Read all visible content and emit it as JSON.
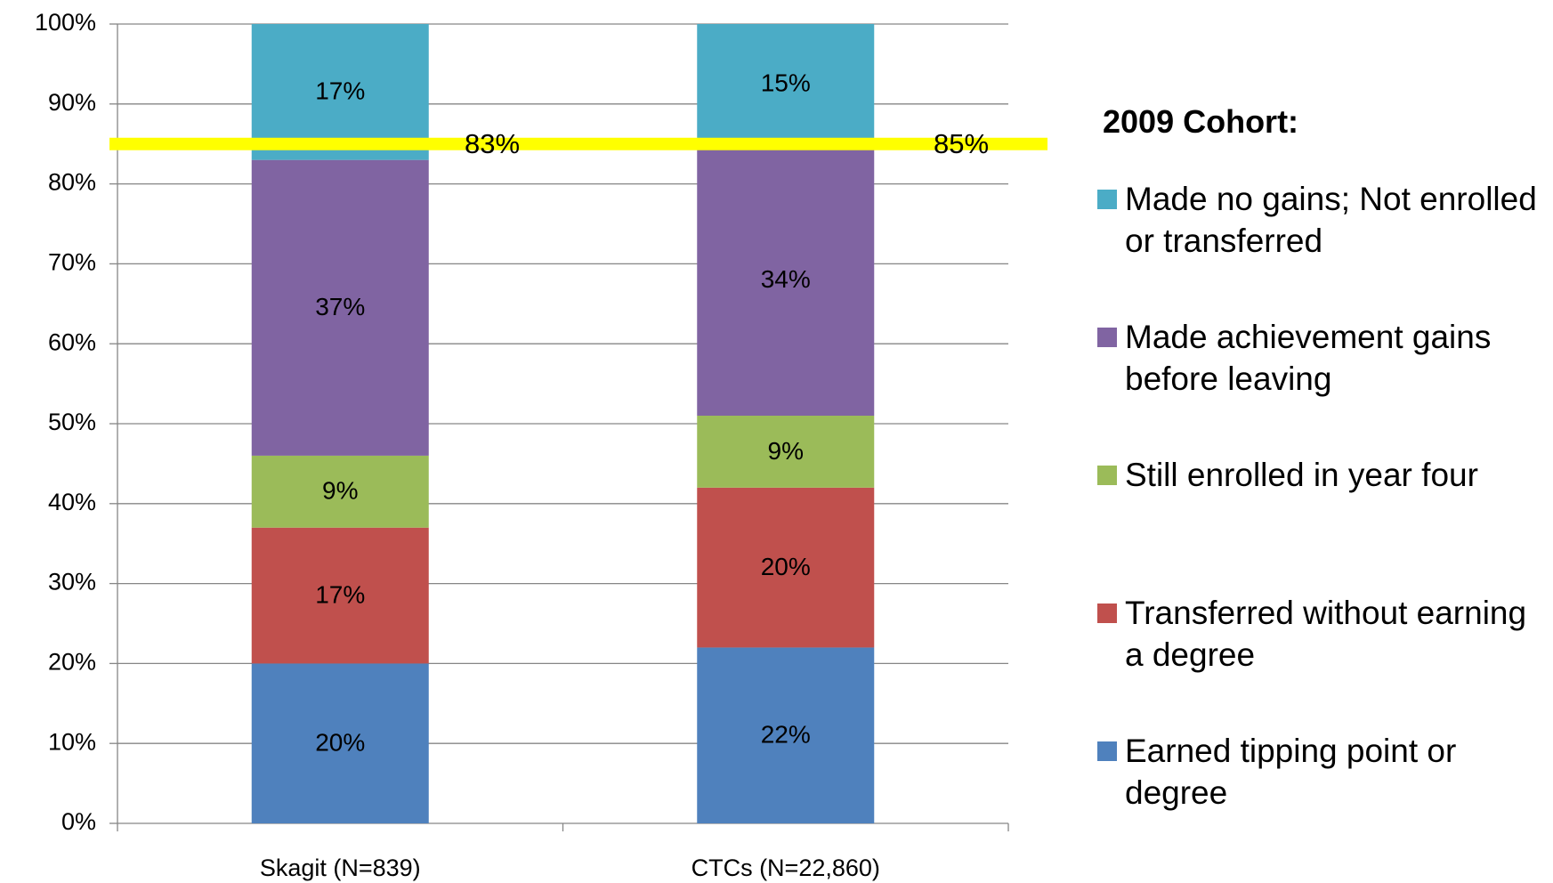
{
  "chart_data": {
    "type": "stacked_bar",
    "categories": [
      "Skagit (N=839)",
      "CTCs (N=22,860)"
    ],
    "series": [
      {
        "name": "Earned tipping point or degree",
        "color": "#4f81bd",
        "values": [
          20,
          22
        ],
        "value_labels": [
          "20%",
          "22%"
        ]
      },
      {
        "name": "Transferred without earning a degree",
        "color": "#c0504d",
        "values": [
          17,
          20
        ],
        "value_labels": [
          "17%",
          "20%"
        ]
      },
      {
        "name": "Still enrolled in year four",
        "color": "#9bbb59",
        "values": [
          9,
          9
        ],
        "value_labels": [
          "9%",
          "9%"
        ]
      },
      {
        "name": "Made achievement gains before leaving",
        "color": "#8064a2",
        "values": [
          37,
          34
        ],
        "value_labels": [
          "37%",
          "34%"
        ]
      },
      {
        "name": "Made no gains; Not enrolled or transferred",
        "color": "#4bacc6",
        "values": [
          17,
          15
        ],
        "value_labels": [
          "17%",
          "15%"
        ]
      }
    ],
    "legend_title": "2009 Cohort:",
    "legend": "right",
    "reference_line": {
      "value": 85,
      "color": "#ffff00"
    },
    "annotations": [
      "83%",
      "85%"
    ],
    "ylim": [
      0,
      100
    ],
    "yticks": [
      {
        "value": 0,
        "label": "0%"
      },
      {
        "value": 10,
        "label": "10%"
      },
      {
        "value": 20,
        "label": "20%"
      },
      {
        "value": 30,
        "label": "30%"
      },
      {
        "value": 40,
        "label": "40%"
      },
      {
        "value": 50,
        "label": "50%"
      },
      {
        "value": 60,
        "label": "60%"
      },
      {
        "value": 70,
        "label": "70%"
      },
      {
        "value": 80,
        "label": "80%"
      },
      {
        "value": 90,
        "label": "90%"
      },
      {
        "value": 100,
        "label": "100%"
      }
    ],
    "grid": true
  }
}
